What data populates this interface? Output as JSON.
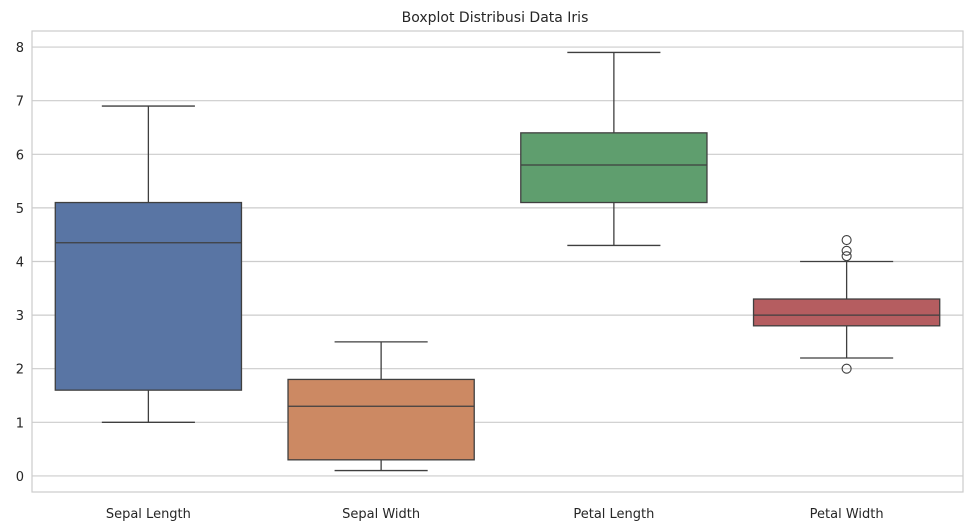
{
  "chart_data": {
    "type": "boxplot",
    "title": "Boxplot Distribusi Data Iris",
    "xlabel": "",
    "ylabel": "",
    "ylim": [
      -0.3,
      8.3
    ],
    "yticks": [
      0,
      1,
      2,
      3,
      4,
      5,
      6,
      7,
      8
    ],
    "grid": true,
    "categories": [
      "Sepal Length",
      "Sepal Width",
      "Petal Length",
      "Petal Width"
    ],
    "boxes": [
      {
        "category": "Sepal Length",
        "whisker_low": 1.0,
        "q1": 1.6,
        "median": 4.35,
        "q3": 5.1,
        "whisker_high": 6.9,
        "outliers": [],
        "color": "#5975a4"
      },
      {
        "category": "Sepal Width",
        "whisker_low": 0.1,
        "q1": 0.3,
        "median": 1.3,
        "q3": 1.8,
        "whisker_high": 2.5,
        "outliers": [],
        "color": "#cc8963"
      },
      {
        "category": "Petal Length",
        "whisker_low": 4.3,
        "q1": 5.1,
        "median": 5.8,
        "q3": 6.4,
        "whisker_high": 7.9,
        "outliers": [],
        "color": "#5f9e6e"
      },
      {
        "category": "Petal Width",
        "whisker_low": 2.2,
        "q1": 2.8,
        "median": 3.0,
        "q3": 3.3,
        "whisker_high": 4.0,
        "outliers": [
          2.0,
          4.1,
          4.2,
          4.4
        ],
        "color": "#b55d60"
      }
    ],
    "colors": {
      "grid": "#cccccc",
      "frame": "#cccccc",
      "line": "#3f3f3f"
    }
  }
}
